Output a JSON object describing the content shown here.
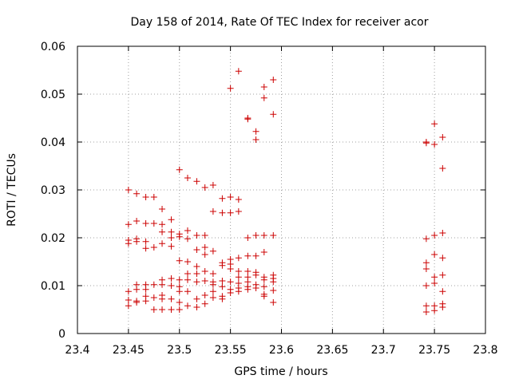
{
  "chart_data": {
    "type": "scatter",
    "title": "Day 158 of 2014, Rate Of TEC Index for receiver acor",
    "xlabel": "GPS time / hours",
    "ylabel": "ROTI / TECUs",
    "xlim": [
      23.4,
      23.8
    ],
    "ylim": [
      0,
      0.06
    ],
    "xticks": [
      "23.4",
      "23.45",
      "23.5",
      "23.55",
      "23.6",
      "23.65",
      "23.7",
      "23.75",
      "23.8"
    ],
    "yticks": [
      "0",
      "0.01",
      "0.02",
      "0.03",
      "0.04",
      "0.05",
      "0.06"
    ],
    "grid": true,
    "marker": "+",
    "color": "#cc0000",
    "series": [
      {
        "points": [
          [
            23.45,
            0.03
          ],
          [
            23.45,
            0.0228
          ],
          [
            23.45,
            0.0195
          ],
          [
            23.45,
            0.0188
          ],
          [
            23.45,
            0.0088
          ],
          [
            23.45,
            0.007
          ],
          [
            23.45,
            0.0058
          ],
          [
            23.458,
            0.0292
          ],
          [
            23.458,
            0.0235
          ],
          [
            23.458,
            0.0198
          ],
          [
            23.458,
            0.0192
          ],
          [
            23.458,
            0.0102
          ],
          [
            23.458,
            0.0092
          ],
          [
            23.458,
            0.0068
          ],
          [
            23.458,
            0.0065
          ],
          [
            23.467,
            0.0285
          ],
          [
            23.467,
            0.023
          ],
          [
            23.467,
            0.0192
          ],
          [
            23.467,
            0.0178
          ],
          [
            23.467,
            0.0102
          ],
          [
            23.467,
            0.0092
          ],
          [
            23.467,
            0.0078
          ],
          [
            23.467,
            0.0068
          ],
          [
            23.475,
            0.0285
          ],
          [
            23.475,
            0.023
          ],
          [
            23.475,
            0.018
          ],
          [
            23.475,
            0.0102
          ],
          [
            23.475,
            0.0075
          ],
          [
            23.475,
            0.005
          ],
          [
            23.483,
            0.026
          ],
          [
            23.483,
            0.0228
          ],
          [
            23.483,
            0.0212
          ],
          [
            23.483,
            0.0188
          ],
          [
            23.483,
            0.0112
          ],
          [
            23.483,
            0.0102
          ],
          [
            23.483,
            0.008
          ],
          [
            23.483,
            0.0072
          ],
          [
            23.483,
            0.005
          ],
          [
            23.492,
            0.0238
          ],
          [
            23.492,
            0.0212
          ],
          [
            23.492,
            0.02
          ],
          [
            23.492,
            0.0182
          ],
          [
            23.492,
            0.0115
          ],
          [
            23.492,
            0.01
          ],
          [
            23.492,
            0.0072
          ],
          [
            23.492,
            0.005
          ],
          [
            23.5,
            0.0342
          ],
          [
            23.5,
            0.0208
          ],
          [
            23.5,
            0.0202
          ],
          [
            23.5,
            0.0152
          ],
          [
            23.5,
            0.0112
          ],
          [
            23.5,
            0.0098
          ],
          [
            23.5,
            0.0088
          ],
          [
            23.5,
            0.0065
          ],
          [
            23.5,
            0.005
          ],
          [
            23.508,
            0.0325
          ],
          [
            23.508,
            0.0215
          ],
          [
            23.508,
            0.0198
          ],
          [
            23.508,
            0.015
          ],
          [
            23.508,
            0.0125
          ],
          [
            23.508,
            0.0112
          ],
          [
            23.508,
            0.0088
          ],
          [
            23.508,
            0.0058
          ],
          [
            23.517,
            0.0318
          ],
          [
            23.517,
            0.0205
          ],
          [
            23.517,
            0.0175
          ],
          [
            23.517,
            0.014
          ],
          [
            23.517,
            0.0125
          ],
          [
            23.517,
            0.0108
          ],
          [
            23.517,
            0.0072
          ],
          [
            23.517,
            0.0055
          ],
          [
            23.525,
            0.0305
          ],
          [
            23.525,
            0.0205
          ],
          [
            23.525,
            0.018
          ],
          [
            23.525,
            0.0165
          ],
          [
            23.525,
            0.013
          ],
          [
            23.525,
            0.011
          ],
          [
            23.525,
            0.008
          ],
          [
            23.525,
            0.0062
          ],
          [
            23.533,
            0.031
          ],
          [
            23.533,
            0.0255
          ],
          [
            23.533,
            0.0172
          ],
          [
            23.533,
            0.0125
          ],
          [
            23.533,
            0.0108
          ],
          [
            23.533,
            0.0102
          ],
          [
            23.533,
            0.0088
          ],
          [
            23.533,
            0.0075
          ],
          [
            23.542,
            0.0282
          ],
          [
            23.542,
            0.0252
          ],
          [
            23.542,
            0.0148
          ],
          [
            23.542,
            0.0142
          ],
          [
            23.542,
            0.011
          ],
          [
            23.542,
            0.0098
          ],
          [
            23.542,
            0.0078
          ],
          [
            23.542,
            0.0072
          ],
          [
            23.55,
            0.0512
          ],
          [
            23.55,
            0.0285
          ],
          [
            23.55,
            0.0252
          ],
          [
            23.55,
            0.0155
          ],
          [
            23.55,
            0.0145
          ],
          [
            23.55,
            0.0135
          ],
          [
            23.55,
            0.0108
          ],
          [
            23.55,
            0.0092
          ],
          [
            23.55,
            0.0085
          ],
          [
            23.558,
            0.0548
          ],
          [
            23.558,
            0.028
          ],
          [
            23.558,
            0.0255
          ],
          [
            23.558,
            0.0158
          ],
          [
            23.558,
            0.013
          ],
          [
            23.558,
            0.0118
          ],
          [
            23.558,
            0.0105
          ],
          [
            23.558,
            0.0095
          ],
          [
            23.558,
            0.0088
          ],
          [
            23.567,
            0.045
          ],
          [
            23.567,
            0.0448
          ],
          [
            23.567,
            0.02
          ],
          [
            23.567,
            0.0162
          ],
          [
            23.567,
            0.013
          ],
          [
            23.567,
            0.0118
          ],
          [
            23.567,
            0.0108
          ],
          [
            23.567,
            0.0098
          ],
          [
            23.567,
            0.0092
          ],
          [
            23.575,
            0.0422
          ],
          [
            23.575,
            0.0405
          ],
          [
            23.575,
            0.0205
          ],
          [
            23.575,
            0.0162
          ],
          [
            23.575,
            0.0128
          ],
          [
            23.575,
            0.0122
          ],
          [
            23.575,
            0.0102
          ],
          [
            23.575,
            0.0095
          ],
          [
            23.583,
            0.0515
          ],
          [
            23.583,
            0.0492
          ],
          [
            23.583,
            0.0205
          ],
          [
            23.583,
            0.017
          ],
          [
            23.583,
            0.0118
          ],
          [
            23.583,
            0.0112
          ],
          [
            23.583,
            0.0098
          ],
          [
            23.583,
            0.0082
          ],
          [
            23.583,
            0.0078
          ],
          [
            23.592,
            0.053
          ],
          [
            23.592,
            0.0458
          ],
          [
            23.592,
            0.0205
          ],
          [
            23.592,
            0.0122
          ],
          [
            23.592,
            0.0115
          ],
          [
            23.592,
            0.0108
          ],
          [
            23.592,
            0.009
          ],
          [
            23.592,
            0.0065
          ],
          [
            23.742,
            0.04
          ],
          [
            23.742,
            0.0398
          ],
          [
            23.742,
            0.0198
          ],
          [
            23.742,
            0.0148
          ],
          [
            23.742,
            0.0135
          ],
          [
            23.742,
            0.01
          ],
          [
            23.742,
            0.0058
          ],
          [
            23.742,
            0.0045
          ],
          [
            23.75,
            0.0438
          ],
          [
            23.75,
            0.0395
          ],
          [
            23.75,
            0.0205
          ],
          [
            23.75,
            0.0165
          ],
          [
            23.75,
            0.0118
          ],
          [
            23.75,
            0.0105
          ],
          [
            23.75,
            0.0058
          ],
          [
            23.75,
            0.0048
          ],
          [
            23.758,
            0.041
          ],
          [
            23.758,
            0.0345
          ],
          [
            23.758,
            0.021
          ],
          [
            23.758,
            0.0158
          ],
          [
            23.758,
            0.0122
          ],
          [
            23.758,
            0.0088
          ],
          [
            23.758,
            0.0062
          ],
          [
            23.758,
            0.0055
          ]
        ]
      }
    ]
  }
}
